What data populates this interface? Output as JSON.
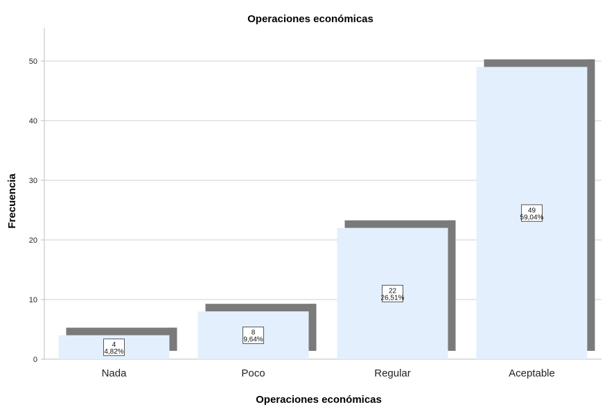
{
  "chart_data": {
    "type": "bar",
    "title": "Operaciones económicas",
    "xlabel": "Operaciones económicas",
    "ylabel": "Frecuencia",
    "categories": [
      "Nada",
      "Poco",
      "Regular",
      "Aceptable"
    ],
    "values": [
      4,
      8,
      22,
      49
    ],
    "percent_labels": [
      "4,82%",
      "9,64%",
      "26,51%",
      "59,04%"
    ],
    "count_labels": [
      "4",
      "8",
      "22",
      "49"
    ],
    "yticks": [
      "0",
      "10",
      "20",
      "30",
      "40",
      "50"
    ],
    "ylim": [
      0,
      55
    ],
    "grid": true,
    "colors": {
      "bar_fill": "#e3effc",
      "bar_shadow": "#7a7a7a",
      "grid": "#cfcfcf",
      "axis": "#bdbdbd"
    }
  }
}
